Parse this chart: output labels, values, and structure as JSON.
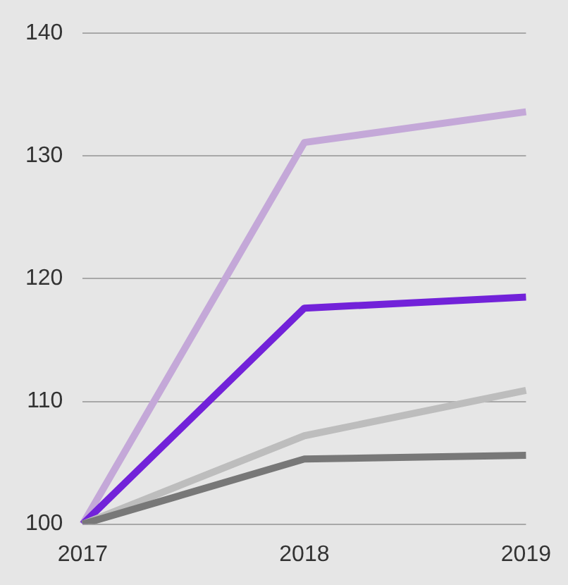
{
  "chart_data": {
    "type": "line",
    "categories": [
      "2017",
      "2018",
      "2019"
    ],
    "series": [
      {
        "color": "#c4a8d8",
        "values": [
          100,
          131.1,
          133.6
        ]
      },
      {
        "color": "#7222d9",
        "values": [
          100,
          117.6,
          118.5
        ]
      },
      {
        "color": "#bdbdbd",
        "values": [
          100,
          107.2,
          110.9
        ]
      },
      {
        "color": "#787878",
        "values": [
          100,
          105.3,
          105.6
        ]
      }
    ],
    "ylim": [
      100,
      140
    ],
    "yticks": [
      100,
      110,
      120,
      130,
      140
    ],
    "grid": "y",
    "legend": false,
    "marker": "none",
    "line_style": "solid"
  }
}
